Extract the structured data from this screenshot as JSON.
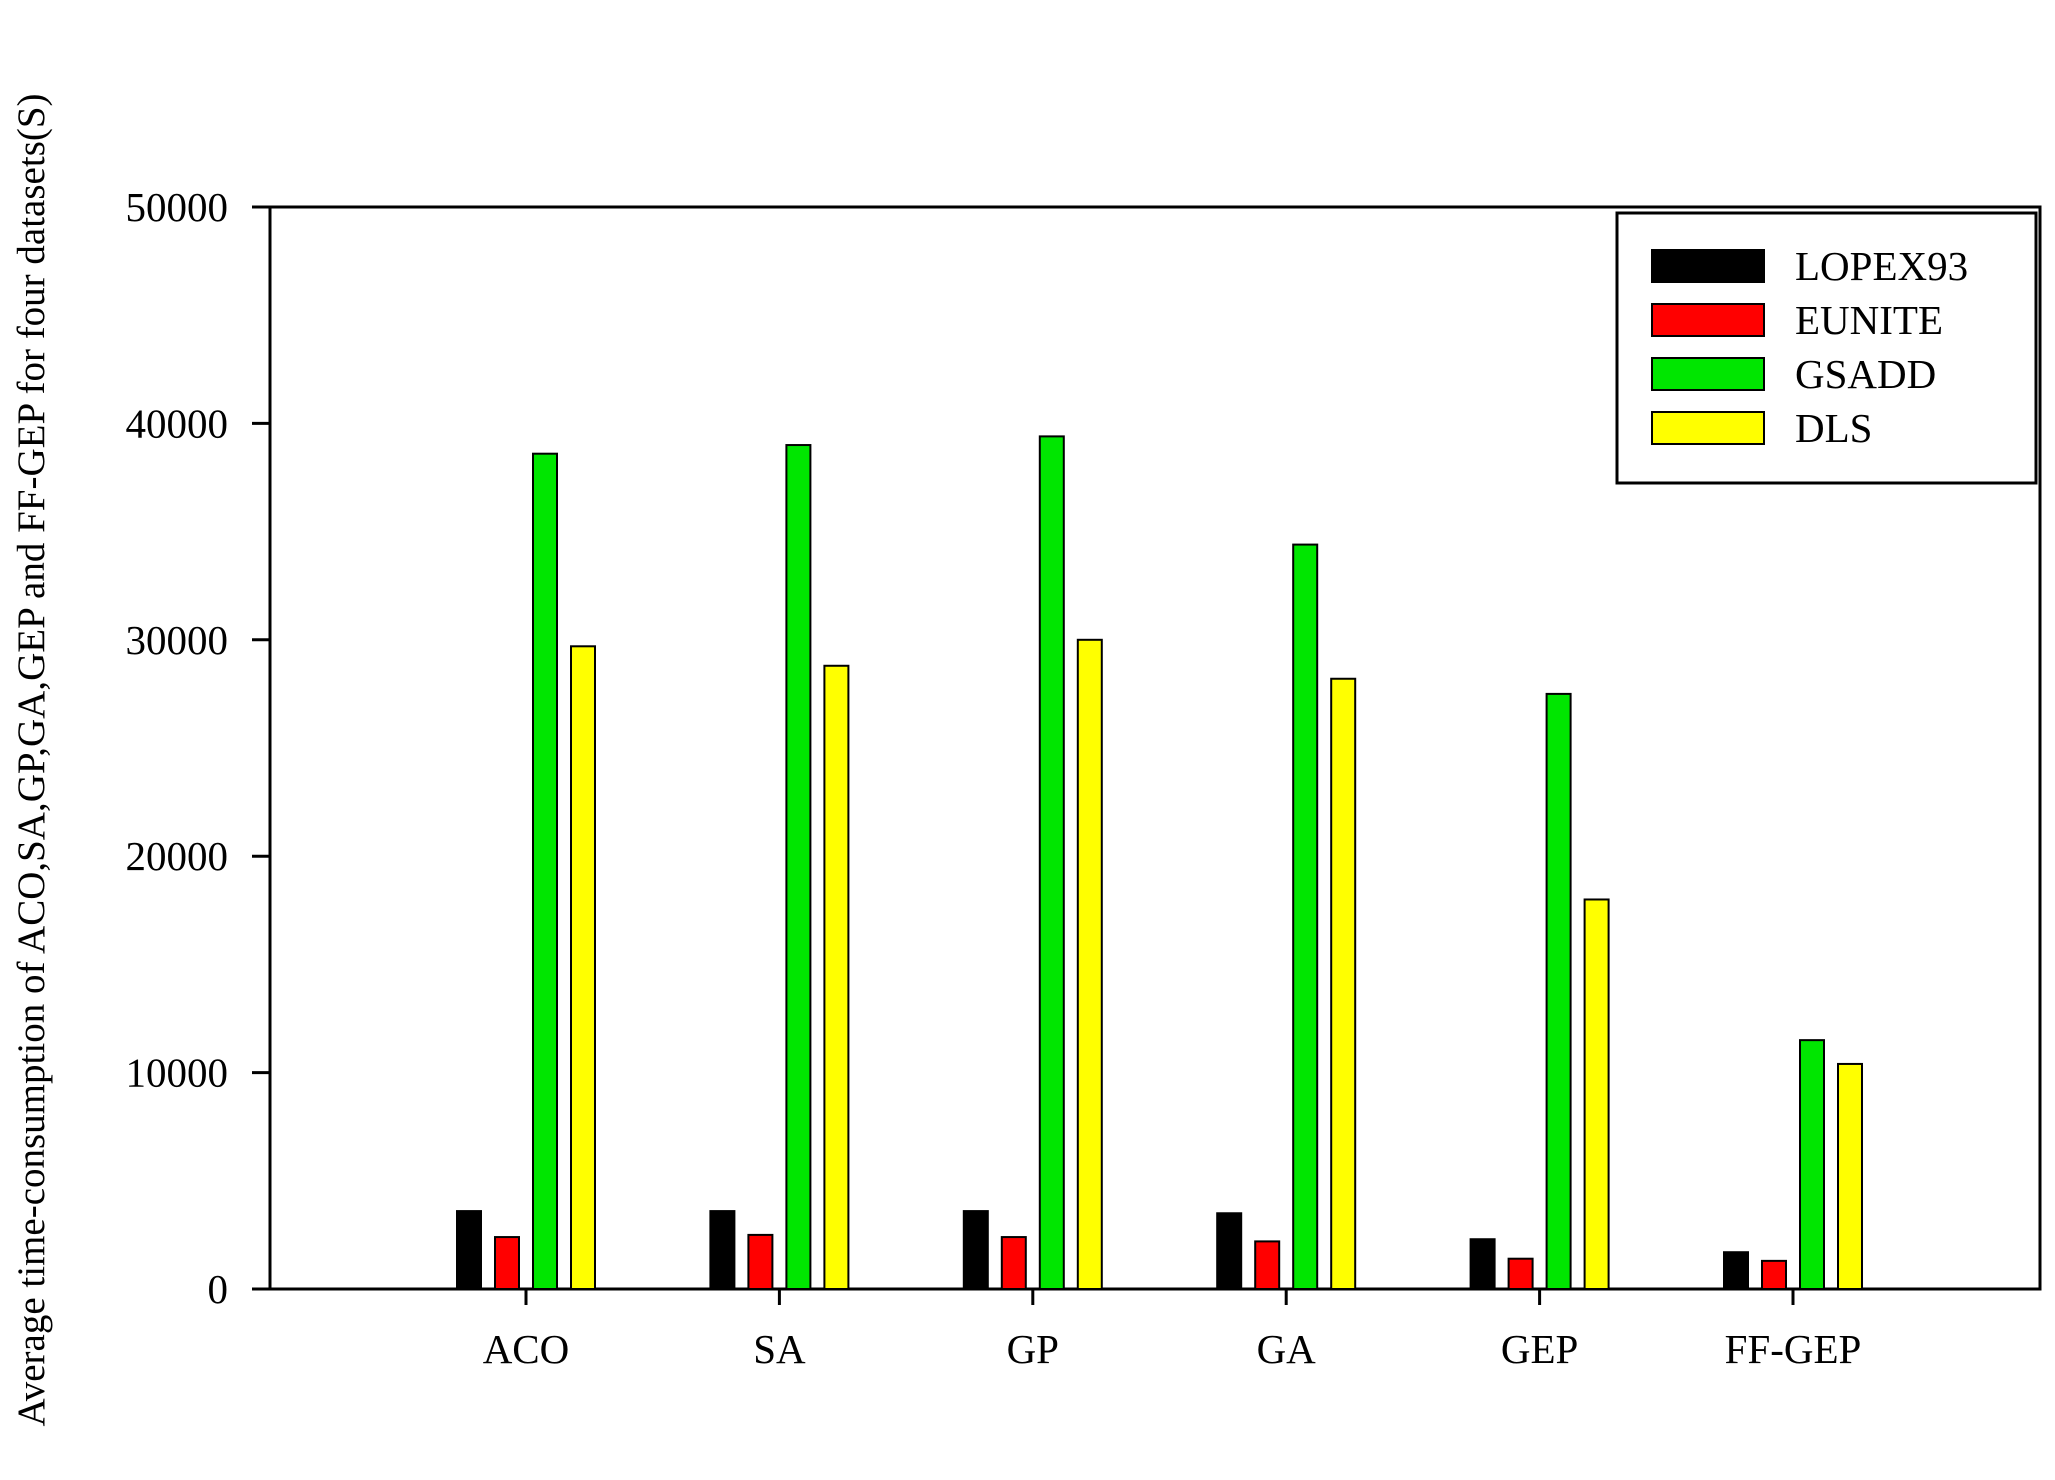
{
  "chart_data": {
    "type": "bar",
    "title": "",
    "xlabel": "",
    "ylabel": "Average time-consumption of ACO,SA,GP,GA,GEP and FF-GEP for four datasets(S)",
    "categories": [
      "ACO",
      "SA",
      "GP",
      "GA",
      "GEP",
      "FF-GEP"
    ],
    "ylim": [
      0,
      50000
    ],
    "yticks": [
      0,
      10000,
      20000,
      30000,
      40000,
      50000
    ],
    "ytick_labels": [
      "0",
      "10000",
      "20000",
      "30000",
      "40000",
      "50000"
    ],
    "grid": false,
    "legend_position": "top-right",
    "series": [
      {
        "name": "LOPEX93",
        "color": "#000000",
        "values": [
          3600,
          3600,
          3600,
          3500,
          2300,
          1700
        ]
      },
      {
        "name": "EUNITE",
        "color": "#ff0000",
        "values": [
          2400,
          2500,
          2400,
          2200,
          1400,
          1300
        ]
      },
      {
        "name": "GSADD",
        "color": "#00e600",
        "values": [
          38600,
          39000,
          39400,
          34400,
          27500,
          11500
        ]
      },
      {
        "name": "DLS",
        "color": "#ffff00",
        "values": [
          29700,
          28800,
          30000,
          28200,
          18000,
          10400
        ]
      }
    ]
  }
}
